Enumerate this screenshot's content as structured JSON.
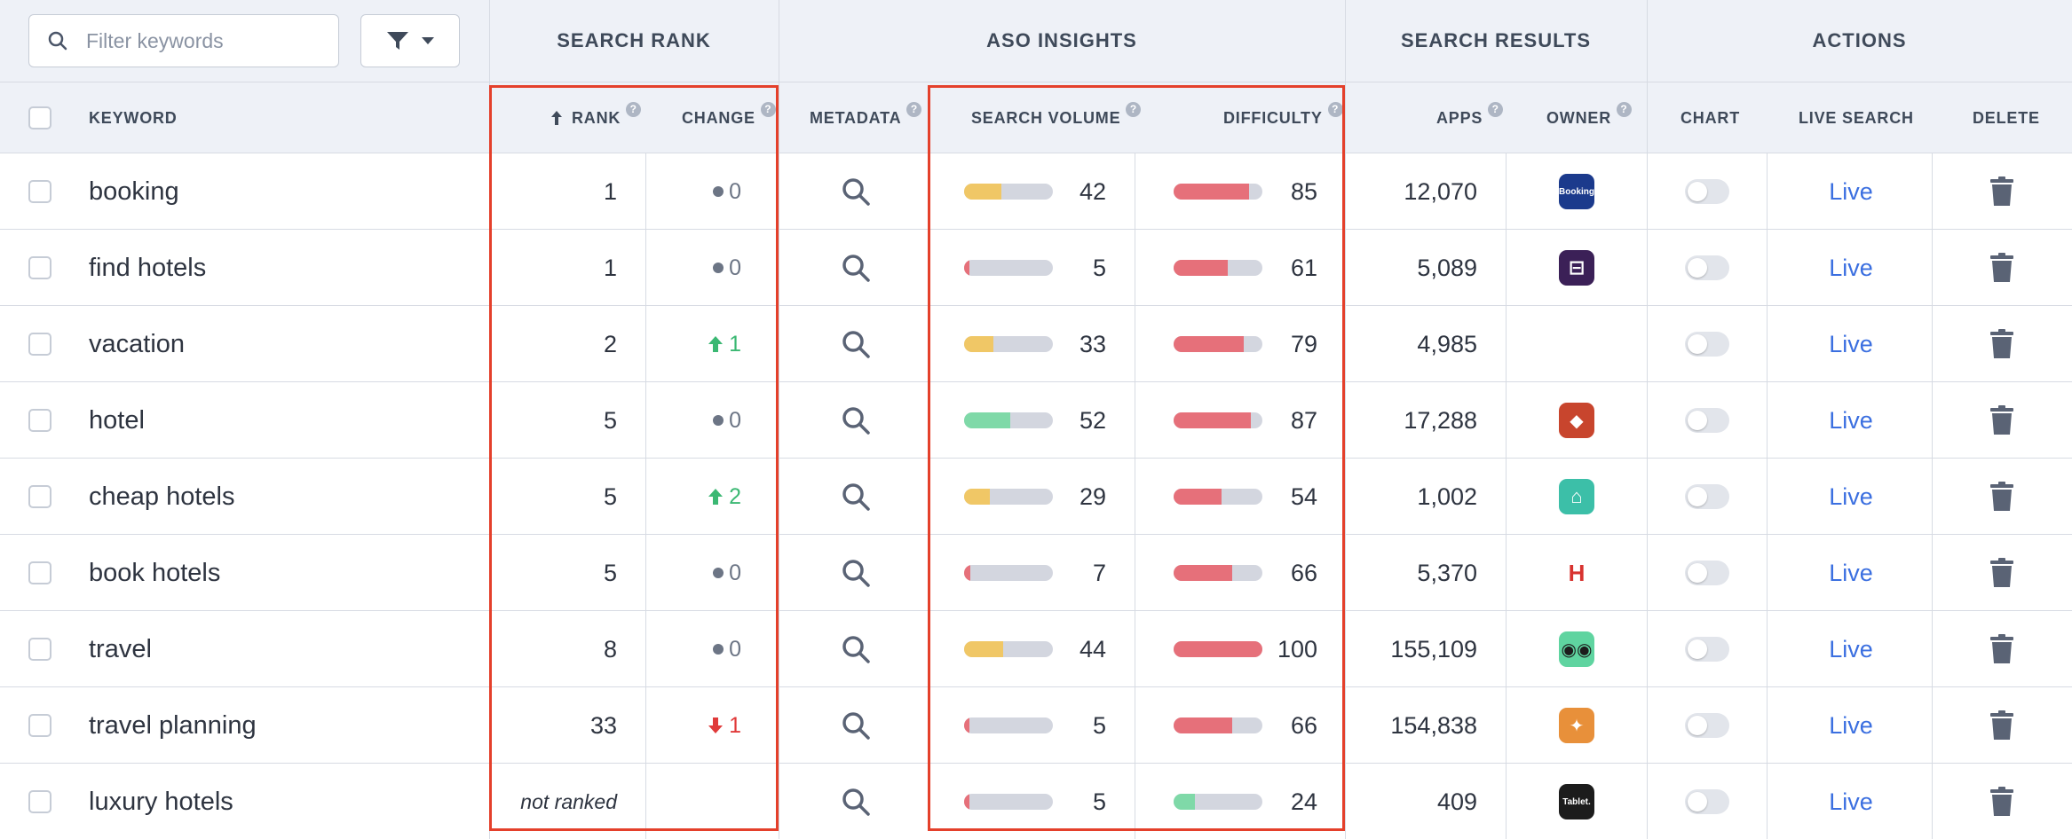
{
  "filter": {
    "placeholder": "Filter keywords"
  },
  "groups": {
    "search_rank": "SEARCH RANK",
    "aso_insights": "ASO INSIGHTS",
    "search_results": "SEARCH RESULTS",
    "actions": "ACTIONS"
  },
  "columns": {
    "keyword": "KEYWORD",
    "rank": "RANK",
    "change": "CHANGE",
    "metadata": "METADATA",
    "search_volume": "SEARCH VOLUME",
    "difficulty": "DIFFICULTY",
    "apps": "APPS",
    "owner": "OWNER",
    "chart": "CHART",
    "live_search": "LIVE SEARCH",
    "delete": "DELETE"
  },
  "rows": [
    {
      "keyword": "booking",
      "rank": "1",
      "change": "0",
      "change_dir": "none",
      "volume": 42,
      "difficulty": 85,
      "apps": "12,070",
      "owner_icon": "booking-app-icon",
      "owner_label": "Booking",
      "owner_color": "#1b3a8c",
      "live": "Live"
    },
    {
      "keyword": "find hotels",
      "rank": "1",
      "change": "0",
      "change_dir": "none",
      "volume": 5,
      "difficulty": 61,
      "apps": "5,089",
      "owner_icon": "hotels-bed-app-icon",
      "owner_label": "",
      "owner_color": "#3b2057",
      "live": "Live"
    },
    {
      "keyword": "vacation",
      "rank": "2",
      "change": "1",
      "change_dir": "up",
      "volume": 33,
      "difficulty": 79,
      "apps": "4,985",
      "owner_icon": "",
      "owner_label": "",
      "owner_color": "",
      "live": "Live"
    },
    {
      "keyword": "hotel",
      "rank": "5",
      "change": "0",
      "change_dir": "none",
      "volume": 52,
      "difficulty": 87,
      "apps": "17,288",
      "owner_icon": "travel-game-app-icon",
      "owner_label": "",
      "owner_color": "#c8452d",
      "live": "Live"
    },
    {
      "keyword": "cheap hotels",
      "rank": "5",
      "change": "2",
      "change_dir": "up",
      "volume": 29,
      "difficulty": 54,
      "apps": "1,002",
      "owner_icon": "hotel-tag-app-icon",
      "owner_label": "",
      "owner_color": "#3cbfa8",
      "live": "Live"
    },
    {
      "keyword": "book hotels",
      "rank": "5",
      "change": "0",
      "change_dir": "none",
      "volume": 7,
      "difficulty": 66,
      "apps": "5,370",
      "owner_icon": "hotels-h-app-icon",
      "owner_label": "",
      "owner_color": "#ffffff",
      "live": "Live"
    },
    {
      "keyword": "travel",
      "rank": "8",
      "change": "0",
      "change_dir": "none",
      "volume": 44,
      "difficulty": 100,
      "apps": "155,109",
      "owner_icon": "tripadvisor-app-icon",
      "owner_label": "",
      "owner_color": "#5fd4a0",
      "live": "Live"
    },
    {
      "keyword": "travel planning",
      "rank": "33",
      "change": "1",
      "change_dir": "down",
      "volume": 5,
      "difficulty": 66,
      "apps": "154,838",
      "owner_icon": "trip-planner-app-icon",
      "owner_label": "",
      "owner_color": "#e8903a",
      "live": "Live"
    },
    {
      "keyword": "luxury hotels",
      "rank": "not ranked",
      "change": "",
      "change_dir": "blank",
      "volume": 5,
      "difficulty": 24,
      "apps": "409",
      "owner_icon": "tablet-hotels-app-icon",
      "owner_label": "Tablet.",
      "owner_color": "#1c1c1c",
      "live": "Live"
    }
  ],
  "colors": {
    "volume_yellow": "#f0c766",
    "volume_green": "#7fd9a8",
    "difficulty_red": "#e6707a",
    "difficulty_green": "#7fd9a8",
    "bar_track": "#d3d6df",
    "up_green": "#3bb873",
    "down_red": "#e03a3a",
    "live_blue": "#3b6fe0",
    "highlight_red": "#e4402b"
  }
}
